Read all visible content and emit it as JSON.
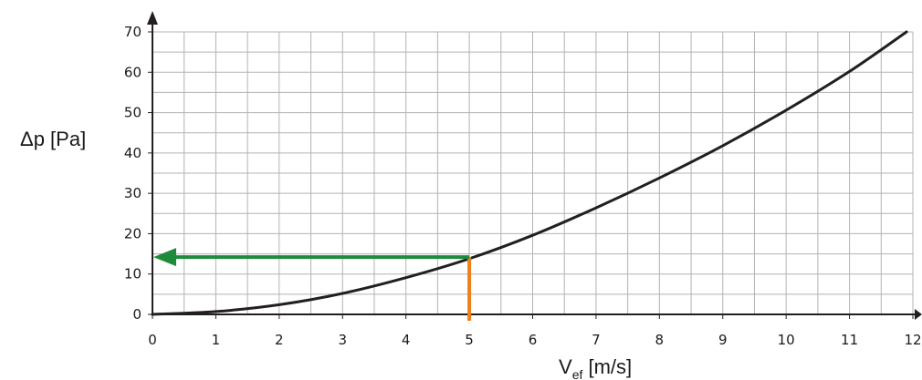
{
  "chart_data": {
    "type": "line",
    "title": "",
    "ylabel": "Δp [Pa]",
    "xlabel": {
      "main": "V",
      "subscript": "ef",
      "unit": " [m/s]"
    },
    "xlim": [
      0,
      12
    ],
    "ylim": [
      0,
      70
    ],
    "x_ticks": [
      "0",
      "1",
      "2",
      "3",
      "4",
      "5",
      "6",
      "7",
      "8",
      "9",
      "10",
      "11",
      "12"
    ],
    "y_ticks": [
      "0",
      "10",
      "20",
      "30",
      "40",
      "50",
      "60",
      "70"
    ],
    "grid": true,
    "series": [
      {
        "color": "#231f20",
        "x": [
          0,
          1,
          2,
          3,
          4,
          5,
          6,
          7,
          8,
          9,
          10,
          11,
          11.9
        ],
        "y": [
          0,
          0.7,
          2.4,
          5.2,
          9.1,
          13.8,
          19.6,
          26.4,
          33.8,
          41.8,
          50.6,
          60.2,
          70
        ]
      }
    ],
    "annotations": [
      {
        "kind": "vertical-line",
        "color": "#f07f1b",
        "x": 5,
        "y_from": 0,
        "y_to": 14.2
      },
      {
        "kind": "horizontal-arrow",
        "color": "#1e8b3c",
        "y": 14.2,
        "x_from": 5,
        "x_to": 0
      }
    ]
  }
}
